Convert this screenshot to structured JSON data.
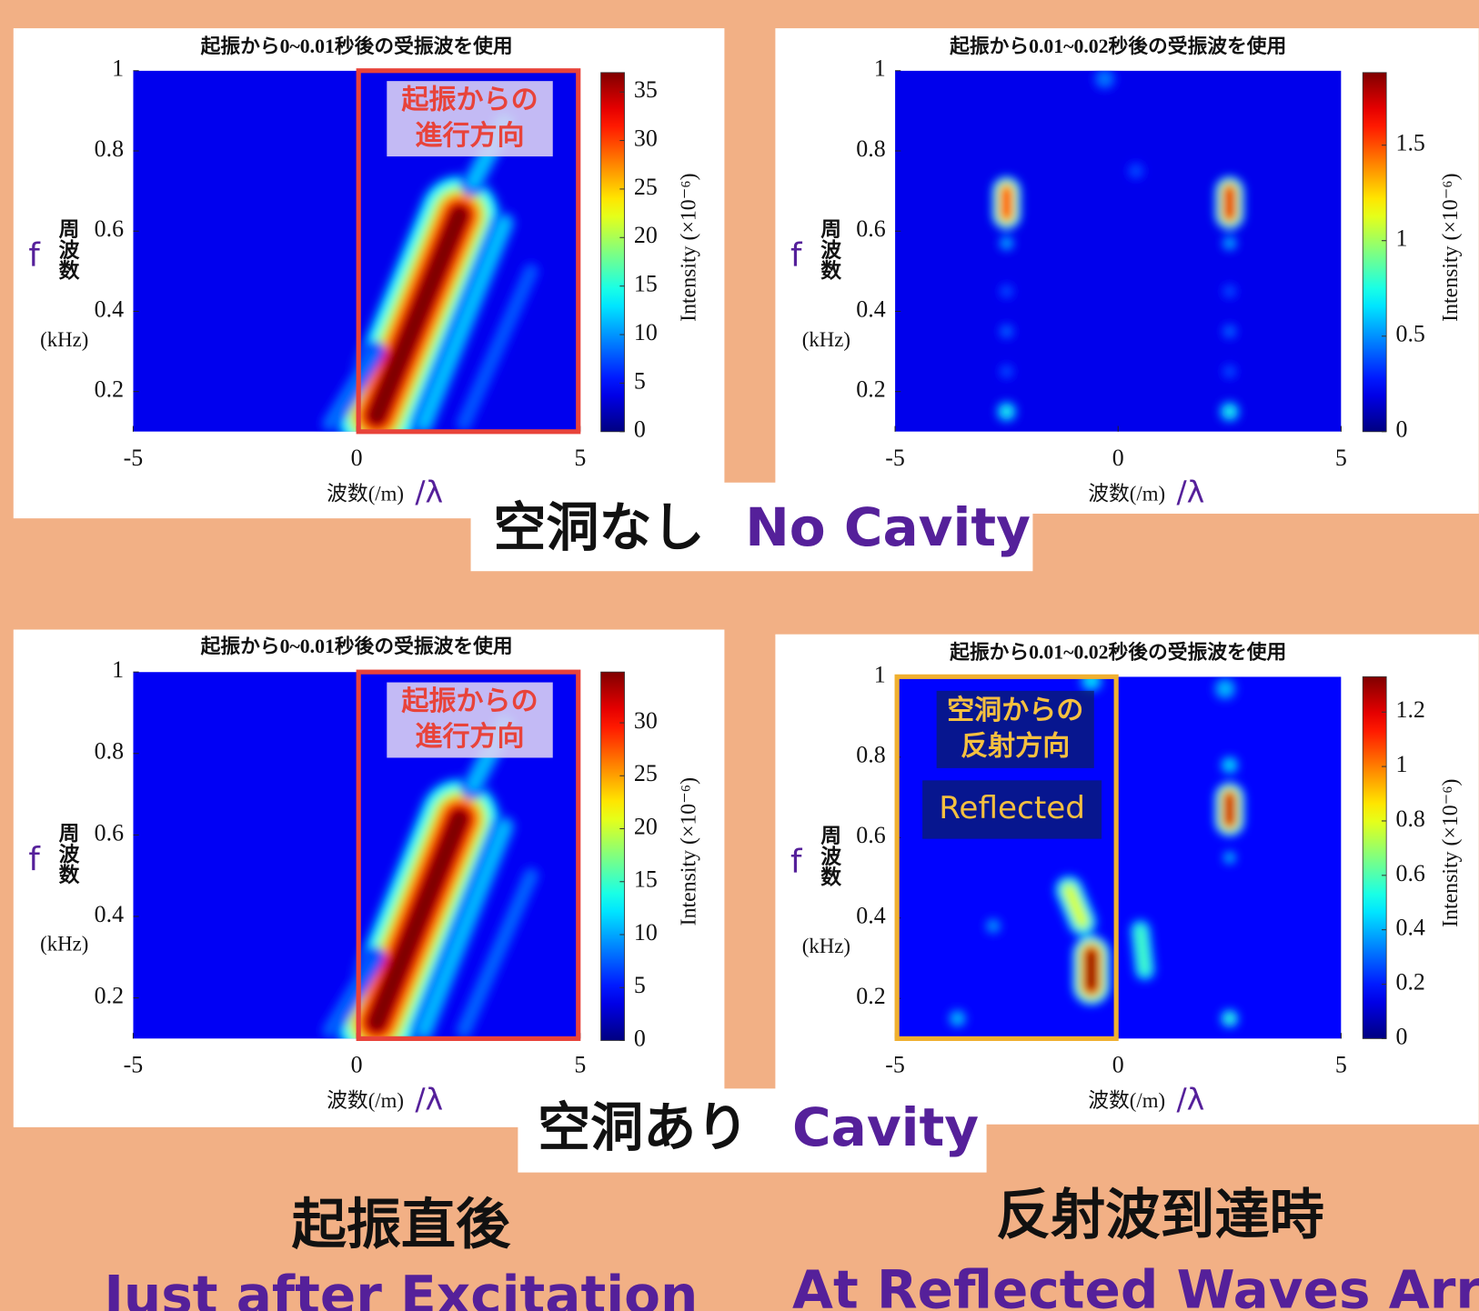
{
  "chart_data": [
    {
      "type": "heatmap",
      "title": "起振から0~0.01秒後の受振波を使用",
      "xlabel": "波数(/m)",
      "xlabel_symbol": "/λ",
      "ylabel_symbol": "f",
      "ylabel": "周波数",
      "ylabel_unit": "(kHz)",
      "colorbar_label": "Intensity (×10⁻⁶)",
      "xlim": [
        -5,
        5
      ],
      "xticks": [
        -5,
        0,
        5
      ],
      "ylim": [
        0.1,
        1
      ],
      "yticks": [
        0.2,
        0.4,
        0.6,
        0.8,
        1
      ],
      "clim": [
        0,
        37
      ],
      "cticks": [
        0,
        5,
        10,
        15,
        20,
        25,
        30,
        35
      ],
      "background": 4,
      "blobs": [
        {
          "from": [
            0.45,
            0.14
          ],
          "to": [
            2.3,
            0.64
          ],
          "width": 1.6,
          "value": 37
        },
        {
          "from": [
            1.5,
            0.12
          ],
          "to": [
            3.3,
            0.62
          ],
          "width": 0.5,
          "value": 12
        },
        {
          "from": [
            2.4,
            0.12
          ],
          "to": [
            3.9,
            0.5
          ],
          "width": 0.4,
          "value": 8
        },
        {
          "from": [
            -0.6,
            0.12
          ],
          "to": [
            0.4,
            0.3
          ],
          "width": 0.4,
          "value": 9
        },
        {
          "from": [
            2.6,
            0.72
          ],
          "to": [
            3.3,
            0.87
          ],
          "width": 0.5,
          "value": 12
        }
      ],
      "highlight": {
        "xlim": [
          0,
          5
        ],
        "color": "#e8433a"
      },
      "annotations": [
        {
          "lines": [
            "起振からの",
            "進行方向"
          ]
        }
      ]
    },
    {
      "type": "heatmap",
      "title": "起振から0.01~0.02秒後の受振波を使用",
      "xlabel": "波数(/m)",
      "xlabel_symbol": "/λ",
      "ylabel_symbol": "f",
      "ylabel": "周波数",
      "ylabel_unit": "(kHz)",
      "colorbar_label": "Intensity (×10⁻⁶)",
      "xlim": [
        -5,
        5
      ],
      "xticks": [
        -5,
        0,
        5
      ],
      "ylim": [
        0.1,
        1
      ],
      "yticks": [
        0.2,
        0.4,
        0.6,
        0.8,
        1
      ],
      "clim": [
        0,
        1.88
      ],
      "cticks": [
        0,
        0.5,
        1,
        1.5
      ],
      "background": 0.2,
      "blobs": [
        {
          "from": [
            -2.5,
            0.64
          ],
          "to": [
            -2.5,
            0.7
          ],
          "width": 0.6,
          "value": 1.6
        },
        {
          "from": [
            2.5,
            0.64
          ],
          "to": [
            2.5,
            0.7
          ],
          "width": 0.6,
          "value": 1.7
        },
        {
          "from": [
            -2.5,
            0.15
          ],
          "to": [
            -2.5,
            0.15
          ],
          "width": 0.45,
          "value": 0.8
        },
        {
          "from": [
            2.5,
            0.15
          ],
          "to": [
            2.5,
            0.15
          ],
          "width": 0.45,
          "value": 0.8
        },
        {
          "from": [
            -2.5,
            0.57
          ],
          "to": [
            -2.5,
            0.57
          ],
          "width": 0.35,
          "value": 0.6
        },
        {
          "from": [
            2.5,
            0.57
          ],
          "to": [
            2.5,
            0.57
          ],
          "width": 0.35,
          "value": 0.6
        },
        {
          "from": [
            -2.5,
            0.45
          ],
          "to": [
            -2.5,
            0.45
          ],
          "width": 0.35,
          "value": 0.4
        },
        {
          "from": [
            2.5,
            0.45
          ],
          "to": [
            2.5,
            0.45
          ],
          "width": 0.35,
          "value": 0.4
        },
        {
          "from": [
            -2.5,
            0.35
          ],
          "to": [
            -2.5,
            0.35
          ],
          "width": 0.35,
          "value": 0.45
        },
        {
          "from": [
            2.5,
            0.35
          ],
          "to": [
            2.5,
            0.35
          ],
          "width": 0.35,
          "value": 0.45
        },
        {
          "from": [
            -2.5,
            0.25
          ],
          "to": [
            -2.5,
            0.25
          ],
          "width": 0.35,
          "value": 0.4
        },
        {
          "from": [
            2.5,
            0.25
          ],
          "to": [
            2.5,
            0.25
          ],
          "width": 0.35,
          "value": 0.4
        },
        {
          "from": [
            -0.3,
            0.98
          ],
          "to": [
            -0.3,
            0.98
          ],
          "width": 0.5,
          "value": 0.5
        },
        {
          "from": [
            0.4,
            0.75
          ],
          "to": [
            0.4,
            0.75
          ],
          "width": 0.4,
          "value": 0.4
        }
      ]
    },
    {
      "type": "heatmap",
      "title": "起振から0~0.01秒後の受振波を使用",
      "xlabel": "波数(/m)",
      "xlabel_symbol": "/λ",
      "ylabel_symbol": "f",
      "ylabel": "周波数",
      "ylabel_unit": "(kHz)",
      "colorbar_label": "Intensity (×10⁻⁶)",
      "xlim": [
        -5,
        5
      ],
      "xticks": [
        -5,
        0,
        5
      ],
      "ylim": [
        0.1,
        1
      ],
      "yticks": [
        0.2,
        0.4,
        0.6,
        0.8,
        1
      ],
      "clim": [
        0,
        34.8
      ],
      "cticks": [
        0,
        5,
        10,
        15,
        20,
        25,
        30
      ],
      "background": 4,
      "blobs": [
        {
          "from": [
            0.45,
            0.14
          ],
          "to": [
            2.3,
            0.64
          ],
          "width": 1.6,
          "value": 35
        },
        {
          "from": [
            1.5,
            0.12
          ],
          "to": [
            3.3,
            0.62
          ],
          "width": 0.5,
          "value": 11
        },
        {
          "from": [
            2.4,
            0.12
          ],
          "to": [
            3.9,
            0.5
          ],
          "width": 0.4,
          "value": 8
        },
        {
          "from": [
            -0.6,
            0.12
          ],
          "to": [
            0.4,
            0.3
          ],
          "width": 0.4,
          "value": 8
        },
        {
          "from": [
            2.6,
            0.72
          ],
          "to": [
            3.3,
            0.87
          ],
          "width": 0.5,
          "value": 11
        }
      ],
      "highlight": {
        "xlim": [
          0,
          5
        ],
        "color": "#e8433a"
      },
      "annotations": [
        {
          "lines": [
            "起振からの",
            "進行方向"
          ]
        }
      ]
    },
    {
      "type": "heatmap",
      "title": "起振から0.01~0.02秒後の受振波を使用",
      "xlabel": "波数(/m)",
      "xlabel_symbol": "/λ",
      "ylabel_symbol": "f",
      "ylabel": "周波数",
      "ylabel_unit": "(kHz)",
      "colorbar_label": "Intensity (×10⁻⁶)",
      "xlim": [
        -5,
        5
      ],
      "xticks": [
        -5,
        0,
        5
      ],
      "ylim": [
        0.1,
        1
      ],
      "yticks": [
        0.2,
        0.4,
        0.6,
        0.8,
        1
      ],
      "clim": [
        0,
        1.33
      ],
      "cticks": [
        0,
        0.2,
        0.4,
        0.6,
        0.8,
        1,
        1.2
      ],
      "background": 0.17,
      "blobs": [
        {
          "from": [
            -0.6,
            0.23
          ],
          "to": [
            -0.6,
            0.31
          ],
          "width": 0.75,
          "value": 1.33
        },
        {
          "from": [
            -0.8,
            0.39
          ],
          "to": [
            -1.1,
            0.47
          ],
          "width": 0.6,
          "value": 0.8
        },
        {
          "from": [
            2.5,
            0.64
          ],
          "to": [
            2.5,
            0.7
          ],
          "width": 0.6,
          "value": 1.25
        },
        {
          "from": [
            2.5,
            0.15
          ],
          "to": [
            2.5,
            0.15
          ],
          "width": 0.4,
          "value": 0.6
        },
        {
          "from": [
            2.5,
            0.78
          ],
          "to": [
            2.5,
            0.78
          ],
          "width": 0.4,
          "value": 0.5
        },
        {
          "from": [
            2.5,
            0.55
          ],
          "to": [
            2.5,
            0.55
          ],
          "width": 0.3,
          "value": 0.45
        },
        {
          "from": [
            0.6,
            0.27
          ],
          "to": [
            0.5,
            0.37
          ],
          "width": 0.45,
          "value": 0.6
        },
        {
          "from": [
            -3.6,
            0.15
          ],
          "to": [
            -3.6,
            0.15
          ],
          "width": 0.4,
          "value": 0.45
        },
        {
          "from": [
            -2.8,
            0.38
          ],
          "to": [
            -2.8,
            0.38
          ],
          "width": 0.35,
          "value": 0.4
        },
        {
          "from": [
            -0.6,
            0.99
          ],
          "to": [
            -0.6,
            0.99
          ],
          "width": 0.5,
          "value": 0.5
        },
        {
          "from": [
            2.4,
            0.97
          ],
          "to": [
            2.4,
            0.97
          ],
          "width": 0.5,
          "value": 0.45
        }
      ],
      "highlight": {
        "xlim": [
          -5,
          0
        ],
        "color": "#f0b030"
      },
      "annotations": [
        {
          "lines": [
            "空洞からの",
            "反射方向"
          ]
        },
        {
          "lines": [
            "Reflected"
          ]
        }
      ]
    }
  ],
  "captions": {
    "no_cavity_ja": "空洞なし",
    "no_cavity_en": "No Cavity",
    "cavity_ja": "空洞あり",
    "cavity_en": "Cavity",
    "left_ja": "起振直後",
    "left_en": "Just after Excitation",
    "right_ja": "反射波到達時",
    "right_en": "At Reflected Waves Arriv"
  }
}
